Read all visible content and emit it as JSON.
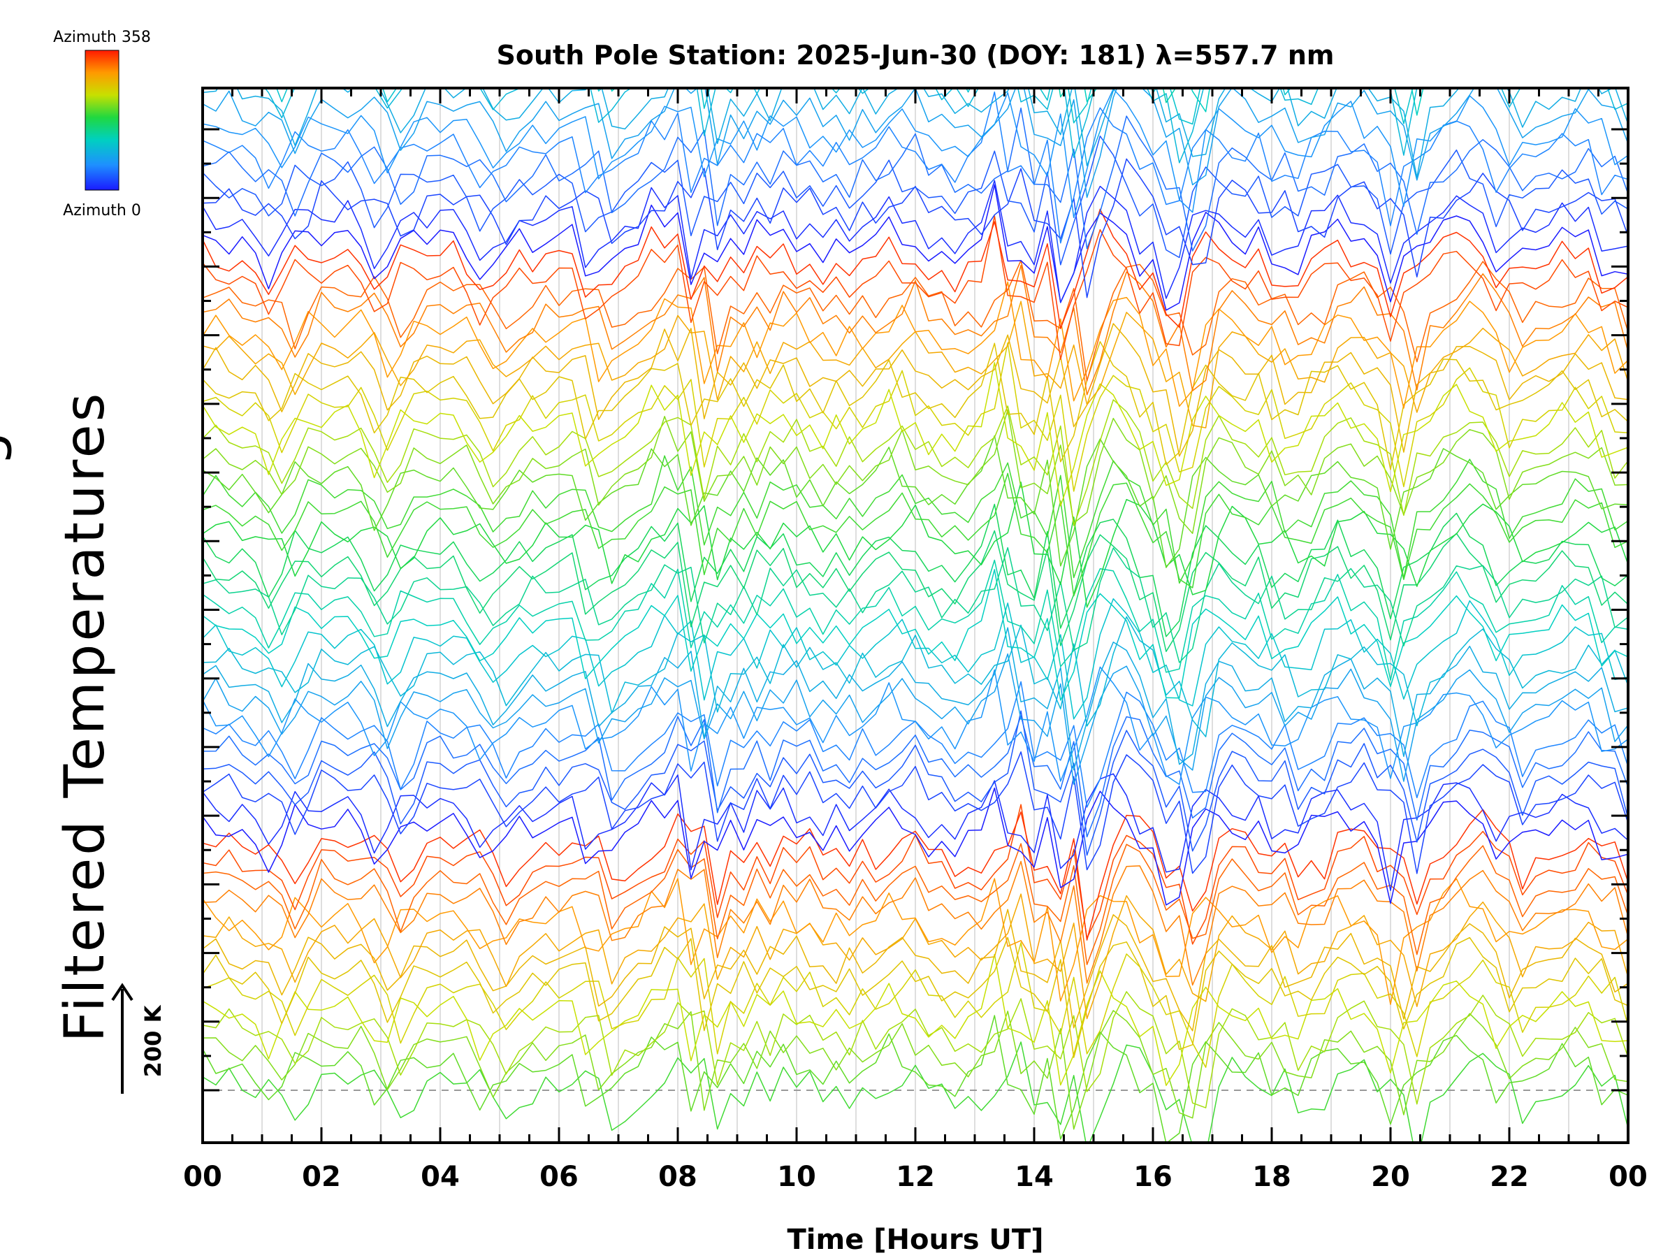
{
  "chart_data": {
    "type": "line",
    "title": "South Pole Station: 2025-Jun-30 (DOY: 181) λ=557.7 nm",
    "xlabel": "Time [Hours UT]",
    "ylabel": "Filtered Temperatures",
    "ylabel_partial": "g",
    "x_range": [
      0,
      24
    ],
    "x_tick_labels": [
      "00",
      "02",
      "04",
      "06",
      "08",
      "10",
      "12",
      "14",
      "16",
      "18",
      "20",
      "22",
      "00"
    ],
    "y_major_ticks": 15,
    "scale_bar": {
      "label": "200 K",
      "value": 200
    },
    "colorbar": {
      "top_label": "Azimuth 358",
      "bottom_label": "Azimuth 0",
      "min": 0,
      "max": 358
    },
    "num_traces": 128,
    "trace_group_size": 32,
    "samples_per_hour": 4.5,
    "offset_per_trace_k": 35,
    "grid": true,
    "dashed_baseline": true
  }
}
